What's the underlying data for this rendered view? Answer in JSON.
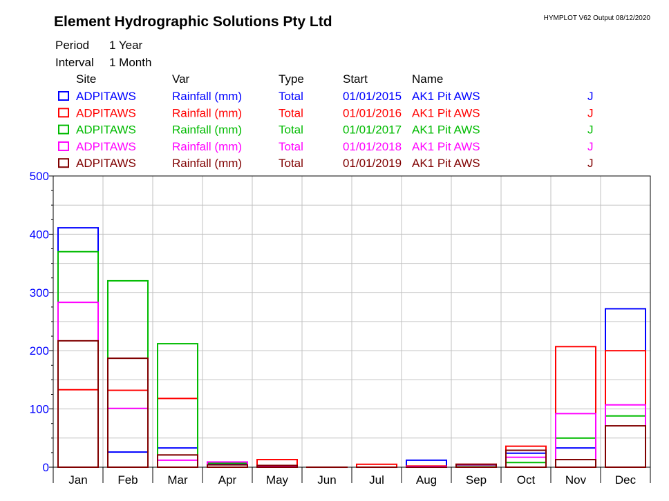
{
  "header": {
    "company": "Element Hydrographic Solutions Pty Ltd",
    "output_info": "HYMPLOT V62  Output 08/12/2020",
    "period_label": "Period",
    "period_value": "1 Year",
    "interval_label": "Interval",
    "interval_value": "1 Month"
  },
  "legend": {
    "columns": [
      "Site",
      "Var",
      "Type",
      "Start",
      "Name"
    ],
    "rows": [
      {
        "site": "ADPITAWS",
        "var": "Rainfall (mm)",
        "type": "Total",
        "start": "01/01/2015",
        "name": "AK1 Pit AWS",
        "flag": "J",
        "color": "#0000ff"
      },
      {
        "site": "ADPITAWS",
        "var": "Rainfall (mm)",
        "type": "Total",
        "start": "01/01/2016",
        "name": "AK1 Pit AWS",
        "flag": "J",
        "color": "#ff0000"
      },
      {
        "site": "ADPITAWS",
        "var": "Rainfall (mm)",
        "type": "Total",
        "start": "01/01/2017",
        "name": "AK1 Pit AWS",
        "flag": "J",
        "color": "#00bb00"
      },
      {
        "site": "ADPITAWS",
        "var": "Rainfall (mm)",
        "type": "Total",
        "start": "01/01/2018",
        "name": "AK1 Pit AWS",
        "flag": "J",
        "color": "#ff00ff"
      },
      {
        "site": "ADPITAWS",
        "var": "Rainfall (mm)",
        "type": "Total",
        "start": "01/01/2019",
        "name": "AK1 Pit AWS",
        "flag": "J",
        "color": "#800000"
      }
    ]
  },
  "chart_data": {
    "type": "bar",
    "categories": [
      "Jan",
      "Feb",
      "Mar",
      "Apr",
      "May",
      "Jun",
      "Jul",
      "Aug",
      "Sep",
      "Oct",
      "Nov",
      "Dec"
    ],
    "series": [
      {
        "name": "01/01/2015",
        "color": "#0000ff",
        "values": [
          411,
          26,
          33,
          6,
          2,
          0,
          0,
          12,
          3,
          24,
          33,
          272
        ]
      },
      {
        "name": "01/01/2016",
        "color": "#ff0000",
        "values": [
          133,
          132,
          118,
          8,
          13,
          0,
          5,
          2,
          5,
          36,
          207,
          200
        ]
      },
      {
        "name": "01/01/2017",
        "color": "#00bb00",
        "values": [
          370,
          320,
          212,
          7,
          2,
          0,
          0,
          0,
          3,
          8,
          50,
          88
        ]
      },
      {
        "name": "01/01/2018",
        "color": "#ff00ff",
        "values": [
          283,
          101,
          12,
          9,
          2,
          0,
          0,
          1,
          4,
          17,
          92,
          107
        ]
      },
      {
        "name": "01/01/2019",
        "color": "#800000",
        "values": [
          217,
          187,
          21,
          4,
          3,
          0,
          0,
          0,
          5,
          29,
          13,
          71
        ]
      }
    ],
    "yticks": [
      0,
      100,
      200,
      300,
      400,
      500
    ],
    "ylim": [
      0,
      500
    ],
    "grid": true,
    "axis_color": "#0000ff"
  }
}
